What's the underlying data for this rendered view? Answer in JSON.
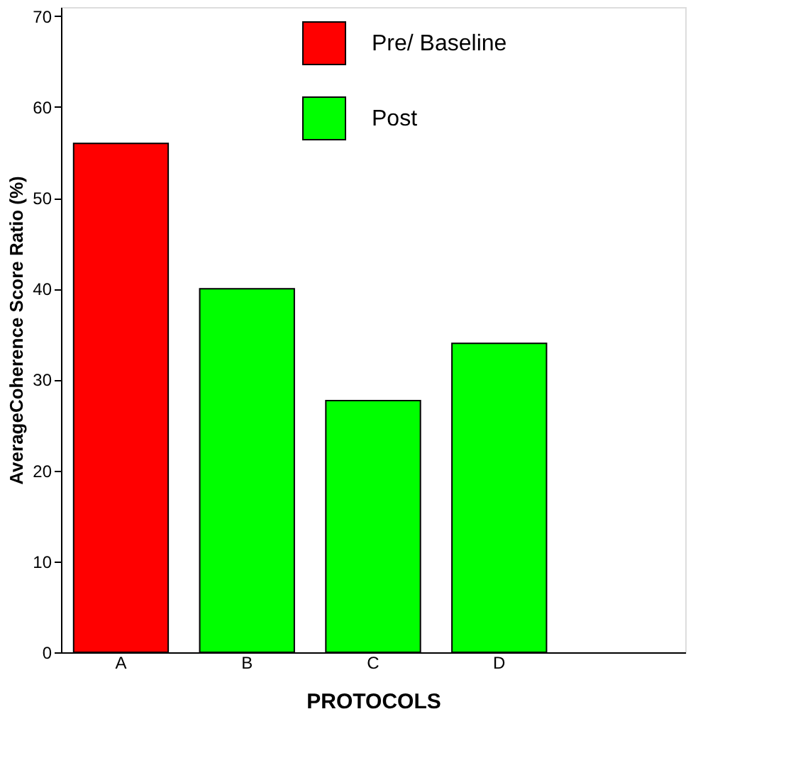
{
  "chart_data": {
    "type": "bar",
    "xlabel": "PROTOCOLS",
    "ylabel": "AverageCoherence Score Ratio (%)",
    "categories": [
      "A",
      "B",
      "C",
      "D"
    ],
    "series": [
      {
        "name": "Pre/ Baseline",
        "color": "#ff0000",
        "values": [
          56,
          null,
          null,
          null
        ]
      },
      {
        "name": "Post",
        "color": "#00ff00",
        "values": [
          null,
          40,
          27.7,
          34
        ]
      }
    ],
    "ylim": [
      0,
      71
    ],
    "yticks": [
      0,
      10,
      20,
      30,
      40,
      50,
      60,
      70
    ],
    "grid": false,
    "legend": "top"
  }
}
